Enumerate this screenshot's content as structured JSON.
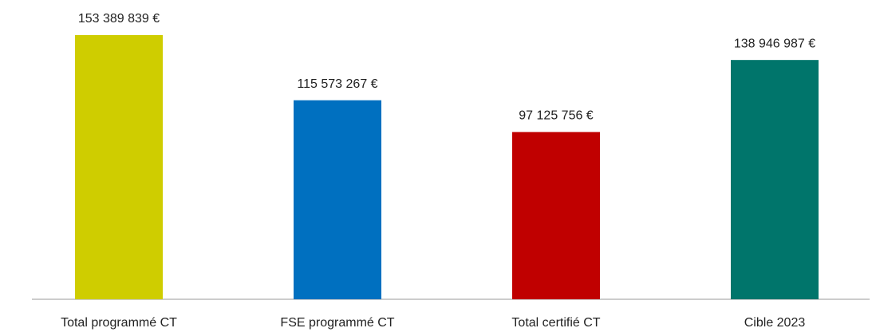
{
  "chart_data": {
    "type": "bar",
    "categories": [
      "Total programmé CT",
      "FSE programmé CT",
      "Total certifié CT",
      "Cible 2023"
    ],
    "values": [
      153389839,
      115573267,
      97125756,
      138946987
    ],
    "value_labels": [
      "153 389 839 €",
      "115 573 267 €",
      "97 125 756 €",
      "138 946 987 €"
    ],
    "colors": [
      "#cfcd00",
      "#0070c0",
      "#c00000",
      "#00756b"
    ]
  }
}
